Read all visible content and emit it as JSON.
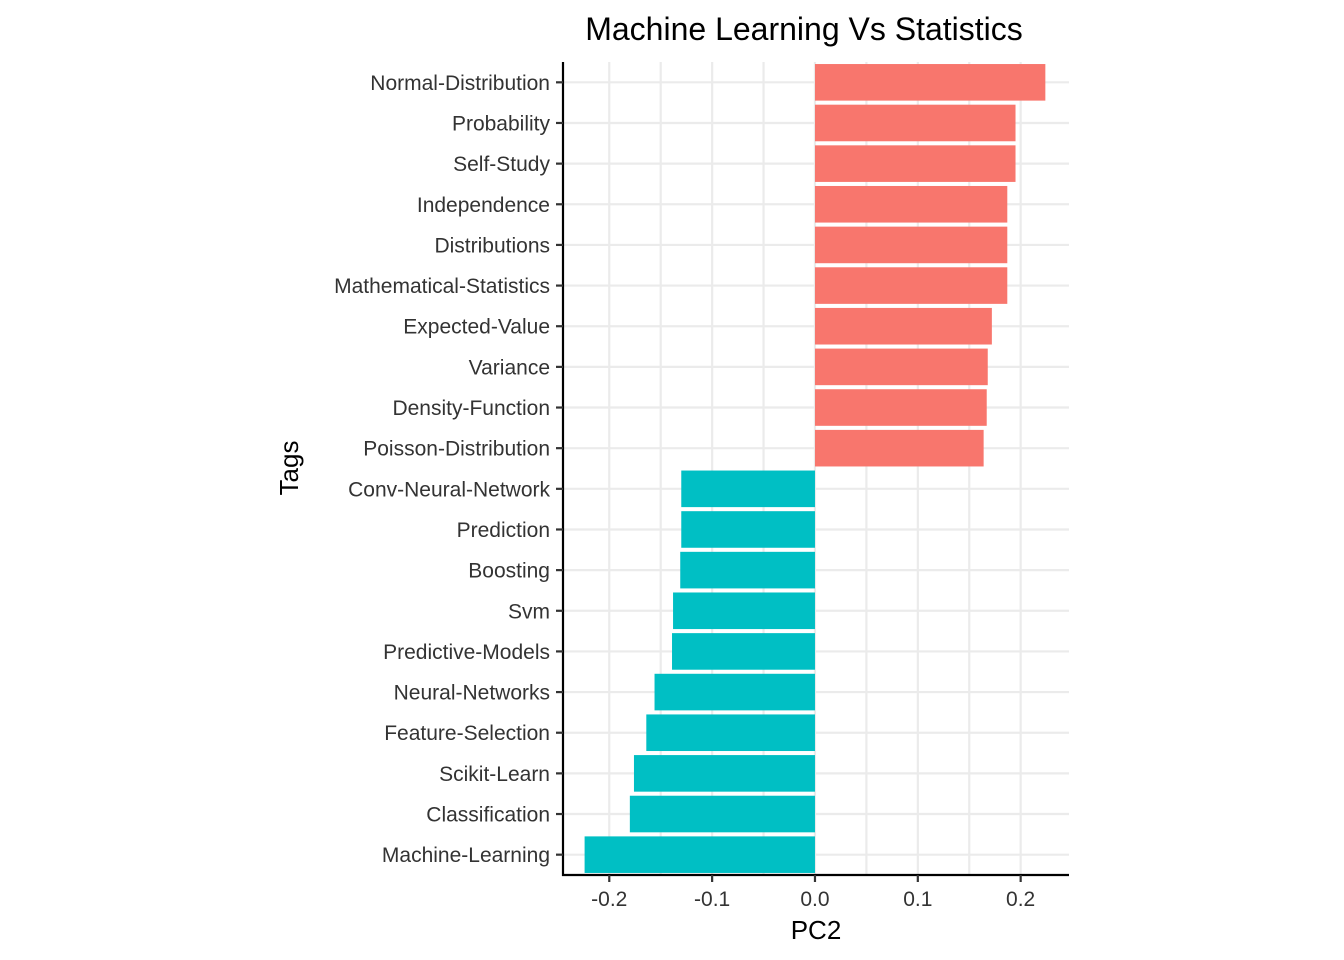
{
  "chart_data": {
    "type": "bar",
    "orientation": "horizontal",
    "title": "Machine Learning Vs Statistics",
    "xlabel": "PC2",
    "ylabel": "Tags",
    "xlim": [
      -0.245,
      0.247
    ],
    "x_ticks": [
      -0.2,
      -0.1,
      0.0,
      0.1,
      0.2
    ],
    "x_tick_labels": [
      "-0.2",
      "-0.1",
      "0.0",
      "0.1",
      "0.2"
    ],
    "grid": true,
    "legend": "none",
    "positive_color": "#f8766d",
    "negative_color": "#00bfc4",
    "categories": [
      "Normal-Distribution",
      "Probability",
      "Self-Study",
      "Independence",
      "Distributions",
      "Mathematical-Statistics",
      "Expected-Value",
      "Variance",
      "Density-Function",
      "Poisson-Distribution",
      "Conv-Neural-Network",
      "Prediction",
      "Boosting",
      "Svm",
      "Predictive-Models",
      "Neural-Networks",
      "Feature-Selection",
      "Scikit-Learn",
      "Classification",
      "Machine-Learning"
    ],
    "values": [
      0.224,
      0.195,
      0.195,
      0.187,
      0.187,
      0.187,
      0.172,
      0.168,
      0.167,
      0.164,
      -0.13,
      -0.13,
      -0.131,
      -0.138,
      -0.139,
      -0.156,
      -0.164,
      -0.176,
      -0.18,
      -0.224
    ]
  }
}
